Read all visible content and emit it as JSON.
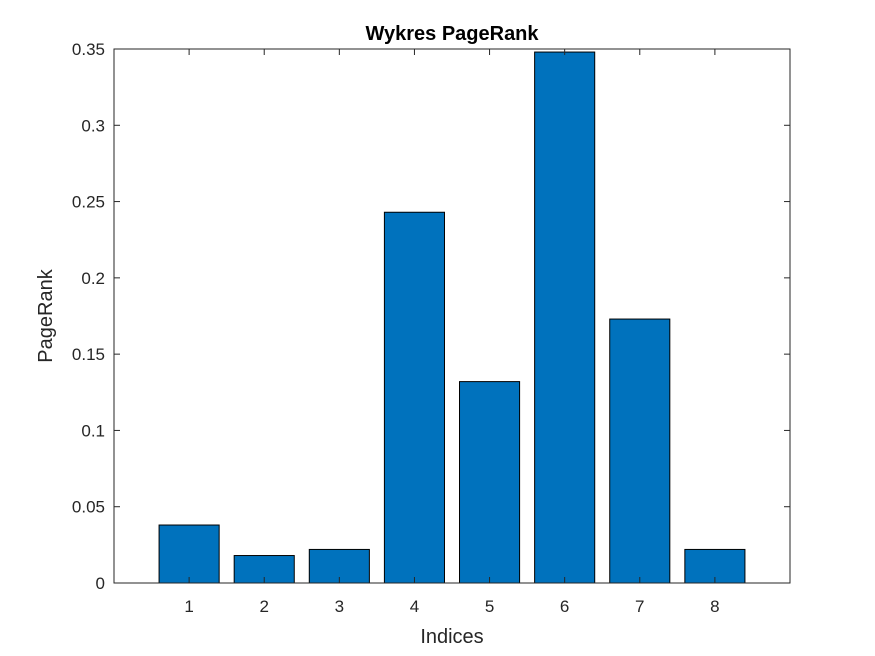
{
  "chart_data": {
    "type": "bar",
    "title": "Wykres PageRank",
    "xlabel": "Indices",
    "ylabel": "PageRank",
    "categories": [
      "1",
      "2",
      "3",
      "4",
      "5",
      "6",
      "7",
      "8"
    ],
    "values": [
      0.038,
      0.018,
      0.022,
      0.243,
      0.132,
      0.348,
      0.173,
      0.022
    ],
    "xlim": [
      0,
      9
    ],
    "ylim": [
      0,
      0.35
    ],
    "yticks": [
      0,
      0.05,
      0.1,
      0.15,
      0.2,
      0.25,
      0.3,
      0.35
    ],
    "ytick_labels": [
      "0",
      "0.05",
      "0.1",
      "0.15",
      "0.2",
      "0.25",
      "0.3",
      "0.35"
    ],
    "grid": false,
    "legend": "none",
    "bar_color": "#0072BD",
    "bar_edge_color": "#000000"
  }
}
